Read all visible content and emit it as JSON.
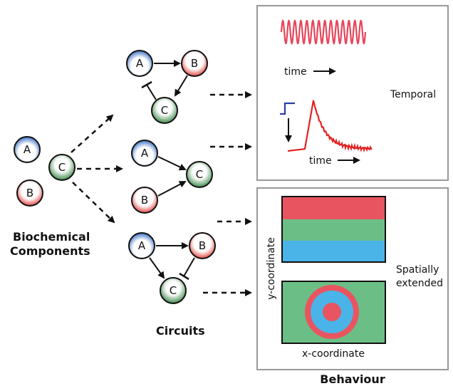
{
  "components": {
    "title_line1": "Biochemical",
    "title_line2": "Components",
    "nodes": [
      "A",
      "C",
      "B"
    ]
  },
  "circuits": {
    "title": "Circuits",
    "circuit1": [
      "A",
      "B",
      "C"
    ],
    "circuit2": [
      "A",
      "B",
      "C"
    ],
    "circuit3": [
      "A",
      "B",
      "C"
    ]
  },
  "behaviour": {
    "title": "Behaviour",
    "temporal": {
      "label": "Temporal",
      "time_label_1": "time",
      "time_label_2": "time"
    },
    "spatial": {
      "label_line1": "Spatially",
      "label_line2": "extended",
      "y_axis": "y-coordinate",
      "x_axis": "x-coordinate"
    }
  },
  "colors": {
    "blue_node": "#3a6fc4",
    "red_node": "#e0453f",
    "green_node": "#3f8a4b",
    "oscillation": "#e8455a",
    "pulse_input": "#2c3fa8",
    "pulse_response": "#e22222",
    "stripe_red": "#e85560",
    "stripe_green": "#6bbf86",
    "stripe_blue": "#4ab3e8",
    "panel_border": "#999999"
  },
  "icons": {
    "arrow": "arrow-icon",
    "inhibit": "inhibition-bar-icon"
  }
}
